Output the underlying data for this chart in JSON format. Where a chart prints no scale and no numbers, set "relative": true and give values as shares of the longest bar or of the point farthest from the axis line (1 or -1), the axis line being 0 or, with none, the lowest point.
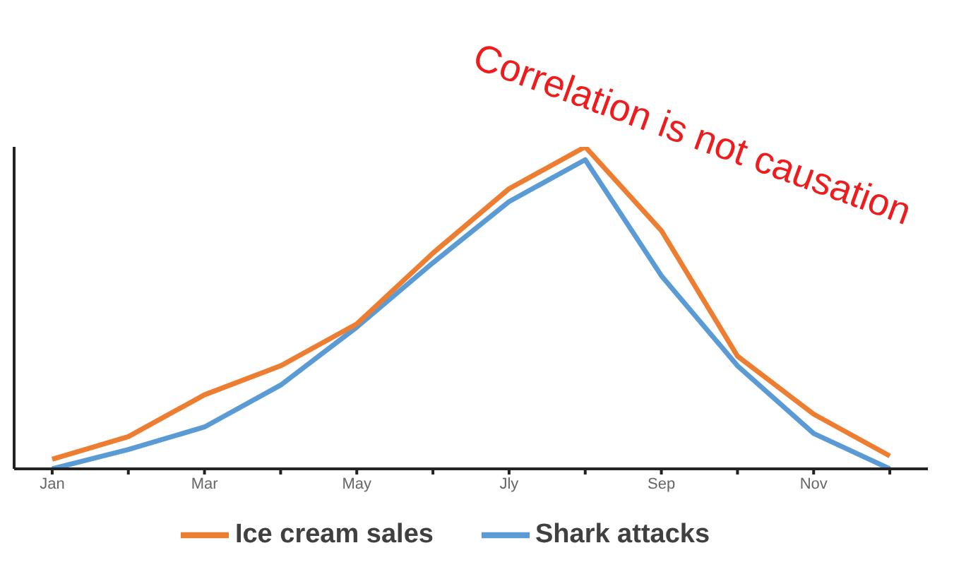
{
  "chart_data": {
    "type": "line",
    "relative": true,
    "categories": [
      "Jan",
      null,
      "Mar",
      null,
      "May",
      null,
      "Jly",
      null,
      "Sep",
      null,
      "Nov",
      null
    ],
    "series": [
      {
        "name": "Shark attacks",
        "color": "#5b9bd5",
        "values": [
          0,
          0.06,
          0.13,
          0.26,
          0.44,
          0.64,
          0.83,
          0.96,
          0.6,
          0.32,
          0.11,
          0
        ]
      },
      {
        "name": "Ice cream sales",
        "color": "#ed7d31",
        "values": [
          0.03,
          0.1,
          0.23,
          0.32,
          0.45,
          0.67,
          0.87,
          1,
          0.74,
          0.35,
          0.17,
          0.04
        ]
      }
    ],
    "annotations": [
      "Correlation is not causation"
    ],
    "legend": "bottom",
    "grid": false,
    "marker": "none",
    "line_style": "solid"
  }
}
